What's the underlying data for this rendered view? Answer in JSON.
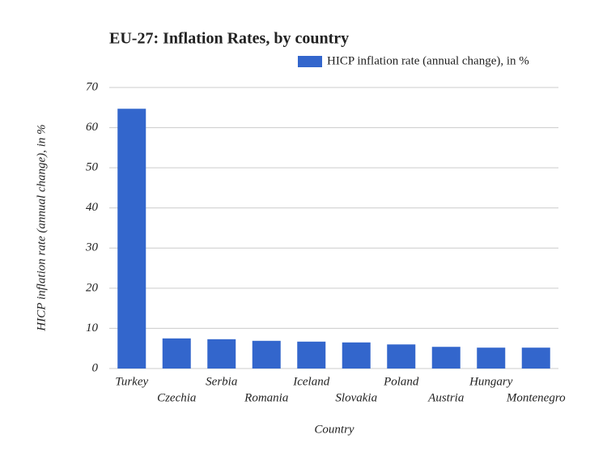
{
  "chart_data": {
    "type": "bar",
    "title": "EU-27: Inflation Rates, by country",
    "x_label": "Country",
    "y_label": "HICP inflation rate (annual change), in %",
    "categories": [
      "Turkey",
      "Czechia",
      "Serbia",
      "Romania",
      "Iceland",
      "Slovakia",
      "Poland",
      "Austria",
      "Hungary",
      "Montenegro"
    ],
    "series": [
      {
        "name": "HICP inflation rate (annual change), in %",
        "color": "#3366cc",
        "values": [
          64.7,
          7.5,
          7.3,
          6.9,
          6.7,
          6.5,
          6.0,
          5.4,
          5.2,
          5.2
        ]
      }
    ],
    "ylim": [
      0,
      70
    ],
    "yticks": [
      0,
      10,
      20,
      30,
      40,
      50,
      60,
      70
    ],
    "grid": true,
    "legend": "top-right"
  }
}
